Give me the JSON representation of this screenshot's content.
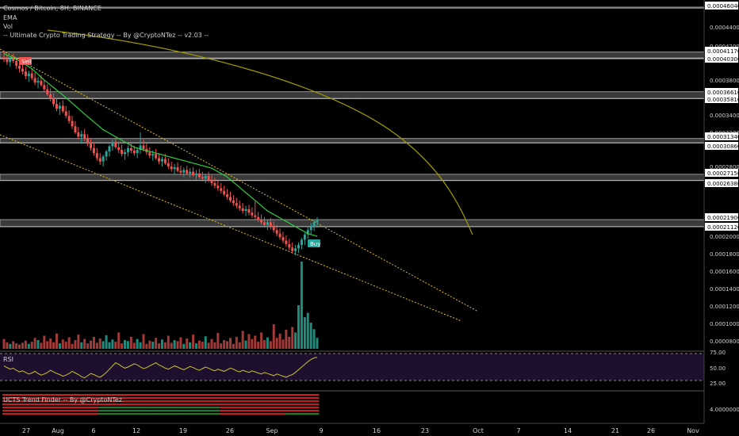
{
  "header": {
    "symbol": "Cosmos / Bitcoin, 8H, BINANCE",
    "ind1": "EMA",
    "ind2": "Vol",
    "strategy": "-- Ultimate Crypto Trading Strategy -- By @CryptoNTez -- v2.03 --"
  },
  "rsi_label": "RSI",
  "trend_label": "UCTS Trend Finder -- By @CryptoNTez",
  "signals": {
    "sell": "Sell",
    "buy": "Buy"
  },
  "colors": {
    "bull": "#26a69a",
    "bear": "#ef5350",
    "ema": "#2ecc40",
    "channel": "#e0c020",
    "curve": "#a09a00",
    "zone": "#9a9a9a",
    "rsi_bg": "#1f0f2e",
    "rsi_line": "#c9c226"
  },
  "chart_data": {
    "type": "candlestick",
    "price_axis_ticks": [
      "0.00046040",
      "0.00044000",
      "0.00042000",
      "0.00041170",
      "0.00040300",
      "0.00038000",
      "0.00036610",
      "0.00035810",
      "0.00034000",
      "0.00032000",
      "0.00031340",
      "0.00030860",
      "0.00028000",
      "0.00027150",
      "0.00026380",
      "0.00021900",
      "0.00021120",
      "0.00020000",
      "0.00018000",
      "0.00016000",
      "0.00014000",
      "0.00012000",
      "0.00010000",
      "0.00008000"
    ],
    "highlighted_levels": [
      "0.00046040",
      "0.00041170",
      "0.00040300",
      "0.00036610",
      "0.00035810",
      "0.00031340",
      "0.00030860",
      "0.00027150",
      "0.00026380",
      "0.00021900",
      "0.00021120"
    ],
    "rsi_ticks": [
      "75.00",
      "50.00",
      "25.00"
    ],
    "trend_tick": "4.00000000",
    "x_labels": [
      "27",
      "Aug",
      "6",
      "12",
      "19",
      "26",
      "Sep",
      "9",
      "16",
      "23",
      "Oct",
      "7",
      "14",
      "21",
      "26",
      "Nov"
    ],
    "ohlc": [
      [
        0.000405,
        0.000414,
        0.000399,
        0.000402
      ],
      [
        0.000402,
        0.000408,
        0.000396,
        0.000399
      ],
      [
        0.000399,
        0.000405,
        0.000394,
        0.000403
      ],
      [
        0.000403,
        0.00041,
        0.000398,
        0.0004
      ],
      [
        0.0004,
        0.000404,
        0.000392,
        0.000395
      ],
      [
        0.000395,
        0.0004,
        0.000388,
        0.000392
      ],
      [
        0.000392,
        0.000398,
        0.000386,
        0.000389
      ],
      [
        0.000389,
        0.000394,
        0.000381,
        0.000384
      ],
      [
        0.000384,
        0.00039,
        0.000378,
        0.000387
      ],
      [
        0.000387,
        0.000392,
        0.00038,
        0.000382
      ],
      [
        0.000382,
        0.000388,
        0.000374,
        0.000377
      ],
      [
        0.000377,
        0.000383,
        0.00037,
        0.000379
      ],
      [
        0.000379,
        0.000385,
        0.000372,
        0.000374
      ],
      [
        0.000374,
        0.00038,
        0.000366,
        0.000369
      ],
      [
        0.000369,
        0.000375,
        0.000361,
        0.000363
      ],
      [
        0.000363,
        0.00037,
        0.000355,
        0.000358
      ],
      [
        0.000358,
        0.000364,
        0.000349,
        0.000352
      ],
      [
        0.000352,
        0.000358,
        0.000344,
        0.000347
      ],
      [
        0.000347,
        0.000354,
        0.00034,
        0.00035
      ],
      [
        0.00035,
        0.000356,
        0.000342,
        0.000344
      ],
      [
        0.000344,
        0.00035,
        0.000336,
        0.000339
      ],
      [
        0.000339,
        0.000345,
        0.00033,
        0.000333
      ],
      [
        0.000333,
        0.000339,
        0.000324,
        0.000327
      ],
      [
        0.000327,
        0.000333,
        0.000318,
        0.00032
      ],
      [
        0.00032,
        0.000326,
        0.000312,
        0.000315
      ],
      [
        0.000315,
        0.000322,
        0.000307,
        0.000318
      ],
      [
        0.000318,
        0.000324,
        0.00031,
        0.000313
      ],
      [
        0.000313,
        0.000318,
        0.000304,
        0.000307
      ],
      [
        0.000307,
        0.000313,
        0.000299,
        0.000302
      ],
      [
        0.000302,
        0.000308,
        0.000293,
        0.000296
      ],
      [
        0.000296,
        0.000302,
        0.000287,
        0.00029
      ],
      [
        0.00029,
        0.000296,
        0.000282,
        0.000286
      ],
      [
        0.000286,
        0.000294,
        0.00028,
        0.000292
      ],
      [
        0.000292,
        0.0003,
        0.000287,
        0.000298
      ],
      [
        0.000298,
        0.000306,
        0.000292,
        0.000304
      ],
      [
        0.000304,
        0.000312,
        0.000299,
        0.000309
      ],
      [
        0.000309,
        0.000314,
        0.000301,
        0.000303
      ],
      [
        0.000303,
        0.000309,
        0.000296,
        0.0003
      ],
      [
        0.0003,
        0.000306,
        0.000292,
        0.000295
      ],
      [
        0.000295,
        0.000301,
        0.000288,
        0.000297
      ],
      [
        0.000297,
        0.000305,
        0.000292,
        0.000302
      ],
      [
        0.000302,
        0.000309,
        0.000296,
        0.000299
      ],
      [
        0.000299,
        0.000305,
        0.000293,
        0.000296
      ],
      [
        0.000296,
        0.000303,
        0.00029,
        0.0003
      ],
      [
        0.0003,
        0.00032,
        0.000295,
        0.000305
      ],
      [
        0.000305,
        0.000312,
        0.000298,
        0.000301
      ],
      [
        0.000301,
        0.000307,
        0.000294,
        0.000297
      ],
      [
        0.000297,
        0.000303,
        0.00029,
        0.000293
      ],
      [
        0.000293,
        0.000299,
        0.000287,
        0.000295
      ],
      [
        0.000295,
        0.000301,
        0.000288,
        0.00029
      ],
      [
        0.00029,
        0.000296,
        0.000283,
        0.000286
      ],
      [
        0.000286,
        0.000292,
        0.00028,
        0.000289
      ],
      [
        0.000289,
        0.000295,
        0.000282,
        0.000284
      ],
      [
        0.000284,
        0.00029,
        0.000277,
        0.00028
      ],
      [
        0.00028,
        0.000286,
        0.000274,
        0.000277
      ],
      [
        0.000277,
        0.000283,
        0.000271,
        0.000279
      ],
      [
        0.000279,
        0.000285,
        0.000273,
        0.000275
      ],
      [
        0.000275,
        0.000281,
        0.00027,
        0.000273
      ],
      [
        0.000273,
        0.000279,
        0.000268,
        0.000276
      ],
      [
        0.000276,
        0.000281,
        0.00027,
        0.000272
      ],
      [
        0.000272,
        0.000278,
        0.000267,
        0.000274
      ],
      [
        0.000274,
        0.000279,
        0.000268,
        0.00027
      ],
      [
        0.00027,
        0.000276,
        0.000265,
        0.000272
      ],
      [
        0.000272,
        0.000277,
        0.000266,
        0.000268
      ],
      [
        0.000268,
        0.000274,
        0.000263,
        0.000266
      ],
      [
        0.000266,
        0.000272,
        0.000261,
        0.000269
      ],
      [
        0.000269,
        0.000274,
        0.000262,
        0.000264
      ],
      [
        0.000264,
        0.00027,
        0.000258,
        0.000261
      ],
      [
        0.000261,
        0.000267,
        0.000255,
        0.000258
      ],
      [
        0.000258,
        0.000264,
        0.000252,
        0.000255
      ],
      [
        0.000255,
        0.000261,
        0.000249,
        0.000252
      ],
      [
        0.000252,
        0.000258,
        0.000246,
        0.000248
      ],
      [
        0.000248,
        0.000254,
        0.000242,
        0.000245
      ],
      [
        0.000245,
        0.000251,
        0.000239,
        0.000241
      ],
      [
        0.000241,
        0.000247,
        0.000235,
        0.000238
      ],
      [
        0.000238,
        0.000244,
        0.000232,
        0.000235
      ],
      [
        0.000235,
        0.000241,
        0.000229,
        0.000232
      ],
      [
        0.000232,
        0.000238,
        0.000226,
        0.000229
      ],
      [
        0.000229,
        0.000235,
        0.000223,
        0.000231
      ],
      [
        0.000231,
        0.000236,
        0.000224,
        0.000227
      ],
      [
        0.000227,
        0.000233,
        0.000221,
        0.000224
      ],
      [
        0.000224,
        0.00024,
        0.000219,
        0.000222
      ],
      [
        0.000222,
        0.000228,
        0.000216,
        0.000219
      ],
      [
        0.000219,
        0.000225,
        0.000213,
        0.000216
      ],
      [
        0.000216,
        0.000222,
        0.00021,
        0.000213
      ],
      [
        0.000213,
        0.000219,
        0.000207,
        0.000216
      ],
      [
        0.000216,
        0.000221,
        0.000208,
        0.000211
      ],
      [
        0.000211,
        0.000217,
        0.000204,
        0.000207
      ],
      [
        0.000207,
        0.000213,
        0.0002,
        0.000203
      ],
      [
        0.000203,
        0.000209,
        0.000196,
        0.000199
      ],
      [
        0.000199,
        0.000205,
        0.000192,
        0.000195
      ],
      [
        0.000195,
        0.000201,
        0.000188,
        0.000191
      ],
      [
        0.000191,
        0.000197,
        0.000184,
        0.000187
      ],
      [
        0.000187,
        0.000193,
        0.00018,
        0.000183
      ],
      [
        0.000183,
        0.00019,
        0.000178,
        0.000186
      ],
      [
        0.000186,
        0.000193,
        0.000181,
        0.00019
      ],
      [
        0.00019,
        0.000198,
        0.000185,
        0.000196
      ],
      [
        0.000196,
        0.000204,
        0.00019,
        0.000202
      ],
      [
        0.000202,
        0.00021,
        0.000197,
        0.000207
      ],
      [
        0.000207,
        0.000215,
        0.000202,
        0.000211
      ],
      [
        0.000211,
        0.000219,
        0.000206,
        0.000216
      ],
      [
        0.000216,
        0.000222,
        0.00021,
        0.000219
      ]
    ],
    "ema": [
      0.00041,
      0.000408,
      0.000406,
      0.000404,
      0.000402,
      0.0004,
      0.000398,
      0.000396,
      0.000394,
      0.000392,
      0.000389,
      0.000386,
      0.000383,
      0.00038,
      0.000377,
      0.000374,
      0.000371,
      0.000368,
      0.000365,
      0.000362,
      0.000359,
      0.000356,
      0.000353,
      0.00035,
      0.000347,
      0.000344,
      0.000341,
      0.000338,
      0.000335,
      0.000332,
      0.000329,
      0.000326,
      0.000323,
      0.000321,
      0.000319,
      0.000317,
      0.000315,
      0.000313,
      0.000311,
      0.000309,
      0.000307,
      0.000305,
      0.000303,
      0.000302,
      0.000301,
      0.0003,
      0.000299,
      0.000298,
      0.000297,
      0.000296,
      0.000295,
      0.000294,
      0.000293,
      0.000292,
      0.000291,
      0.00029,
      0.000289,
      0.000288,
      0.000287,
      0.000286,
      0.000285,
      0.000284,
      0.000283,
      0.000282,
      0.000281,
      0.00028,
      0.000279,
      0.000278,
      0.000276,
      0.000274,
      0.000272,
      0.00027,
      0.000268,
      0.000265,
      0.000262,
      0.000259,
      0.000256,
      0.000253,
      0.00025,
      0.000247,
      0.000244,
      0.000241,
      0.000238,
      0.000235,
      0.000232,
      0.000229,
      0.000227,
      0.000225,
      0.000223,
      0.000221,
      0.000219,
      0.000217,
      0.000215,
      0.000213,
      0.000211,
      0.000209,
      0.000207,
      0.000205,
      0.000203,
      0.000202,
      0.000201,
      0.0002
    ],
    "volume": [
      18,
      12,
      9,
      14,
      10,
      8,
      11,
      15,
      9,
      13,
      20,
      16,
      11,
      24,
      14,
      19,
      12,
      28,
      10,
      17,
      13,
      21,
      9,
      16,
      26,
      12,
      18,
      10,
      15,
      22,
      11,
      19,
      14,
      25,
      12,
      17,
      13,
      30,
      10,
      16,
      14,
      22,
      11,
      18,
      12,
      27,
      9,
      15,
      13,
      20,
      10,
      17,
      12,
      24,
      11,
      16,
      14,
      21,
      9,
      19,
      12,
      26,
      10,
      15,
      13,
      23,
      11,
      18,
      12,
      29,
      10,
      16,
      14,
      20,
      9,
      22,
      12,
      33,
      15,
      27,
      18,
      24,
      13,
      30,
      16,
      21,
      14,
      45,
      20,
      28,
      17,
      35,
      22,
      40,
      30,
      80,
      160,
      58,
      66,
      48,
      36,
      20
    ],
    "rsi": [
      52,
      49,
      46,
      48,
      44,
      41,
      43,
      40,
      37,
      39,
      42,
      38,
      35,
      37,
      40,
      44,
      41,
      38,
      36,
      33,
      35,
      38,
      42,
      39,
      36,
      32,
      30,
      34,
      38,
      36,
      33,
      31,
      35,
      40,
      46,
      52,
      58,
      55,
      51,
      48,
      50,
      53,
      56,
      54,
      50,
      47,
      49,
      52,
      55,
      58,
      54,
      51,
      48,
      46,
      49,
      52,
      50,
      47,
      45,
      48,
      51,
      49,
      46,
      44,
      47,
      50,
      48,
      45,
      43,
      46,
      44,
      42,
      45,
      48,
      46,
      43,
      41,
      44,
      42,
      40,
      43,
      41,
      39,
      37,
      40,
      38,
      36,
      34,
      37,
      35,
      33,
      31,
      34,
      36,
      40,
      45,
      50,
      55,
      60,
      64,
      67,
      68
    ]
  }
}
